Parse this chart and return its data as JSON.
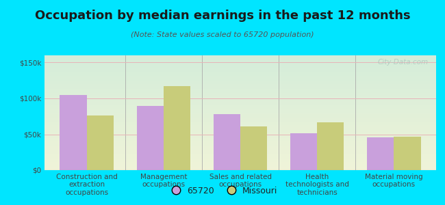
{
  "title": "Occupation by median earnings in the past 12 months",
  "subtitle": "(Note: State values scaled to 65720 population)",
  "categories": [
    "Construction and\nextraction\noccupations",
    "Management\noccupations",
    "Sales and related\noccupations",
    "Health\ntechnologists and\ntechnicians",
    "Material moving\noccupations"
  ],
  "values_65720": [
    105000,
    90000,
    78000,
    51000,
    46000
  ],
  "values_missouri": [
    76000,
    117000,
    61000,
    67000,
    47000
  ],
  "color_65720": "#c9a0dc",
  "color_missouri": "#c8cc7a",
  "ylim": [
    0,
    160000
  ],
  "yticks": [
    0,
    50000,
    100000,
    150000
  ],
  "ytick_labels": [
    "$0",
    "$50k",
    "$100k",
    "$150k"
  ],
  "background_outer": "#00e5ff",
  "watermark": "City-Data.com",
  "legend_65720": "65720",
  "legend_missouri": "Missouri",
  "bar_width": 0.35,
  "title_fontsize": 13,
  "subtitle_fontsize": 8,
  "tick_fontsize": 7.5
}
